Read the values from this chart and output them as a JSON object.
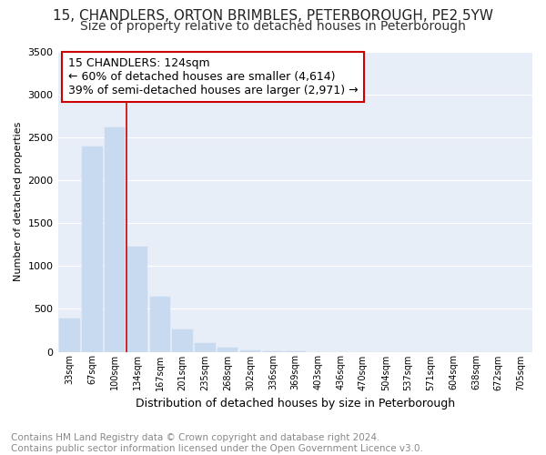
{
  "title": "15, CHANDLERS, ORTON BRIMBLES, PETERBOROUGH, PE2 5YW",
  "subtitle": "Size of property relative to detached houses in Peterborough",
  "xlabel": "Distribution of detached houses by size in Peterborough",
  "ylabel": "Number of detached properties",
  "categories": [
    "33sqm",
    "67sqm",
    "100sqm",
    "134sqm",
    "167sqm",
    "201sqm",
    "235sqm",
    "268sqm",
    "302sqm",
    "336sqm",
    "369sqm",
    "403sqm",
    "436sqm",
    "470sqm",
    "504sqm",
    "537sqm",
    "571sqm",
    "604sqm",
    "638sqm",
    "672sqm",
    "705sqm"
  ],
  "values": [
    390,
    2390,
    2610,
    1230,
    640,
    260,
    100,
    45,
    20,
    10,
    5,
    0,
    0,
    0,
    0,
    0,
    0,
    0,
    0,
    0,
    0
  ],
  "bar_color": "#c8daf0",
  "bar_edge_color": "#c8daf0",
  "vline_color": "#cc0000",
  "annotation_text": "15 CHANDLERS: 124sqm\n← 60% of detached houses are smaller (4,614)\n39% of semi-detached houses are larger (2,971) →",
  "annotation_box_color": "#ffffff",
  "annotation_box_edge_color": "#cc0000",
  "ylim": [
    0,
    3500
  ],
  "yticks": [
    0,
    500,
    1000,
    1500,
    2000,
    2500,
    3000,
    3500
  ],
  "footnote": "Contains HM Land Registry data © Crown copyright and database right 2024.\nContains public sector information licensed under the Open Government Licence v3.0.",
  "bg_color": "#ffffff",
  "plot_bg_color": "#e8eef8",
  "grid_color": "#ffffff",
  "title_fontsize": 11,
  "subtitle_fontsize": 10,
  "annotation_fontsize": 9,
  "footnote_fontsize": 7.5,
  "ylabel_fontsize": 8,
  "xlabel_fontsize": 9
}
